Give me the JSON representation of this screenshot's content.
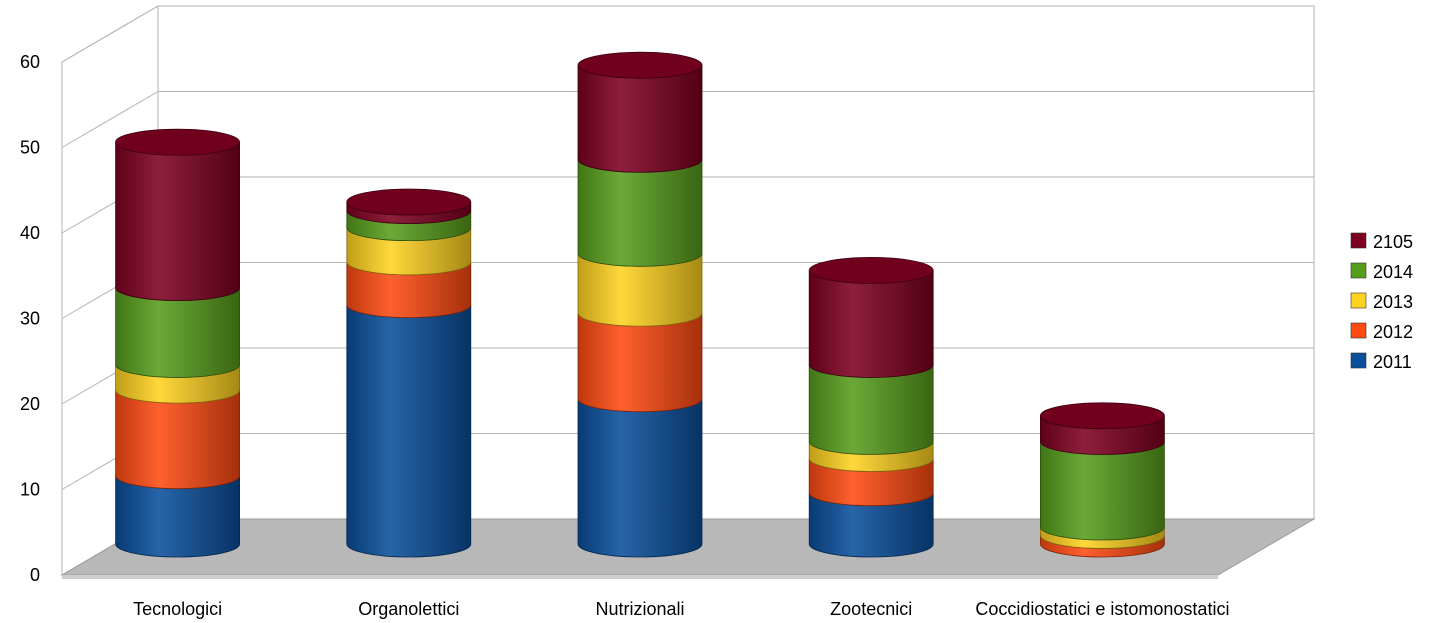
{
  "chart_data": {
    "type": "bar",
    "subtype": "3d-stacked-cylinder",
    "title": "",
    "xlabel": "",
    "ylabel": "",
    "ylim": [
      0,
      60
    ],
    "yticks": [
      "0",
      "10",
      "20",
      "30",
      "40",
      "50",
      "60"
    ],
    "grid": true,
    "legend_position": "right",
    "categories": [
      "Tecnologici",
      "Organolettici",
      "Nutrizionali",
      "Zootecnici",
      "Coccidiostatici e istomonostatici"
    ],
    "series": [
      {
        "name": "2011",
        "color": "#0a4f9c",
        "values": [
          8,
          28,
          17,
          6,
          0
        ]
      },
      {
        "name": "2012",
        "color": "#ff4a12",
        "values": [
          10,
          5,
          10,
          4,
          1
        ]
      },
      {
        "name": "2013",
        "color": "#ffd320",
        "values": [
          3,
          4,
          7,
          2,
          1
        ]
      },
      {
        "name": "2014",
        "color": "#579d1c",
        "values": [
          9,
          2,
          11,
          9,
          10
        ]
      },
      {
        "name": "2105",
        "color": "#7e0021",
        "values": [
          17,
          1,
          11,
          11,
          3
        ]
      }
    ]
  }
}
